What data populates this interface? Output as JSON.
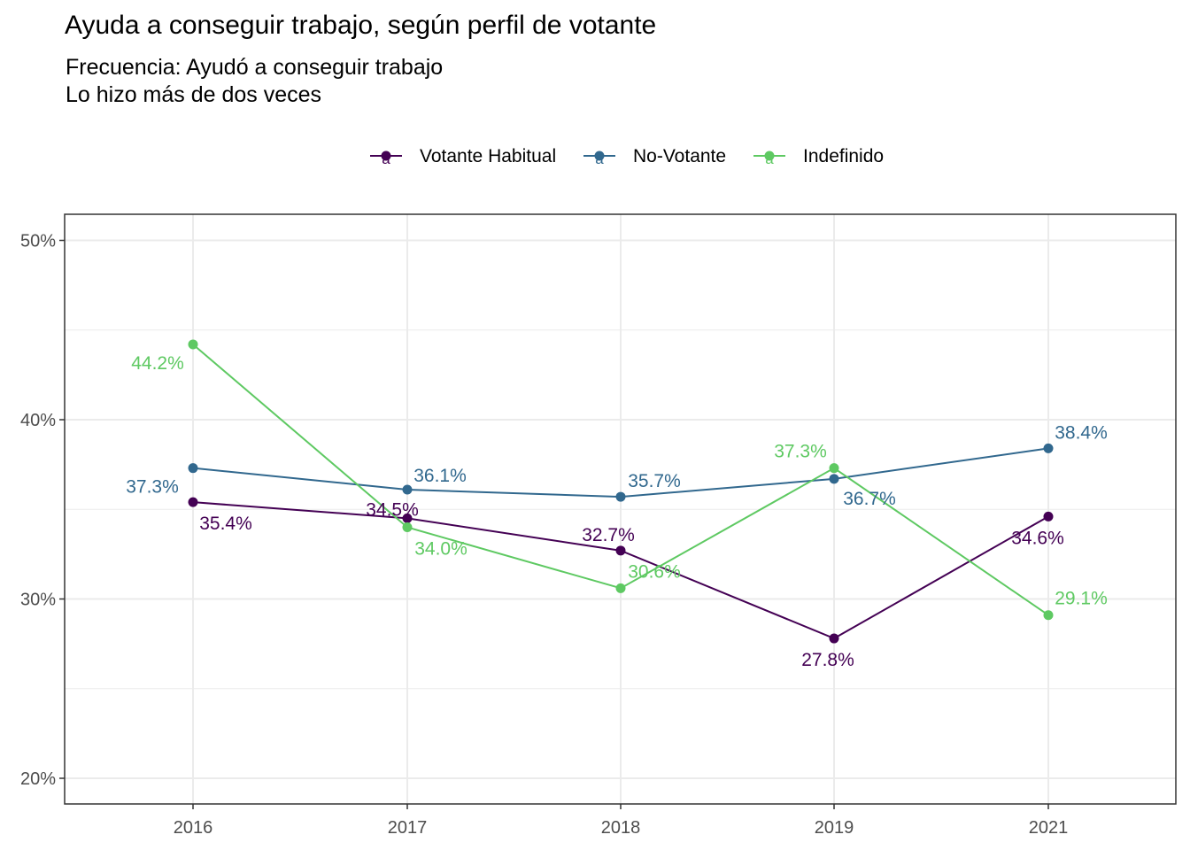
{
  "chart_data": {
    "type": "line",
    "title": "Ayuda a conseguir trabajo, según perfil de votante",
    "subtitle": [
      "Frecuencia: Ayudó a conseguir trabajo",
      "Lo hizo más de dos veces"
    ],
    "xlabel": "",
    "ylabel": "",
    "categories": [
      "2016",
      "2017",
      "2018",
      "2019",
      "2021"
    ],
    "ylim": [
      20,
      50
    ],
    "yticks": [
      20,
      30,
      40,
      50
    ],
    "ytick_labels": [
      "20%",
      "30%",
      "40%",
      "50%"
    ],
    "grid": true,
    "legend_position": "top",
    "legend_key_glyph": "a",
    "series": [
      {
        "name": "Votante Habitual",
        "color": "#440154",
        "values": [
          35.4,
          34.5,
          32.7,
          27.8,
          34.6
        ],
        "labels": [
          "35.4%",
          "34.5%",
          "32.7%",
          "27.8%",
          "34.6%"
        ]
      },
      {
        "name": "No-Votante",
        "color": "#31688e",
        "values": [
          37.3,
          36.1,
          35.7,
          36.7,
          38.4
        ],
        "labels": [
          "37.3%",
          "36.1%",
          "35.7%",
          "36.7%",
          "38.4%"
        ]
      },
      {
        "name": "Indefinido",
        "color": "#5ec962",
        "values": [
          44.2,
          34.0,
          30.6,
          37.3,
          29.1
        ],
        "labels": [
          "44.2%",
          "34.0%",
          "30.6%",
          "37.3%",
          "29.1%"
        ]
      }
    ]
  }
}
